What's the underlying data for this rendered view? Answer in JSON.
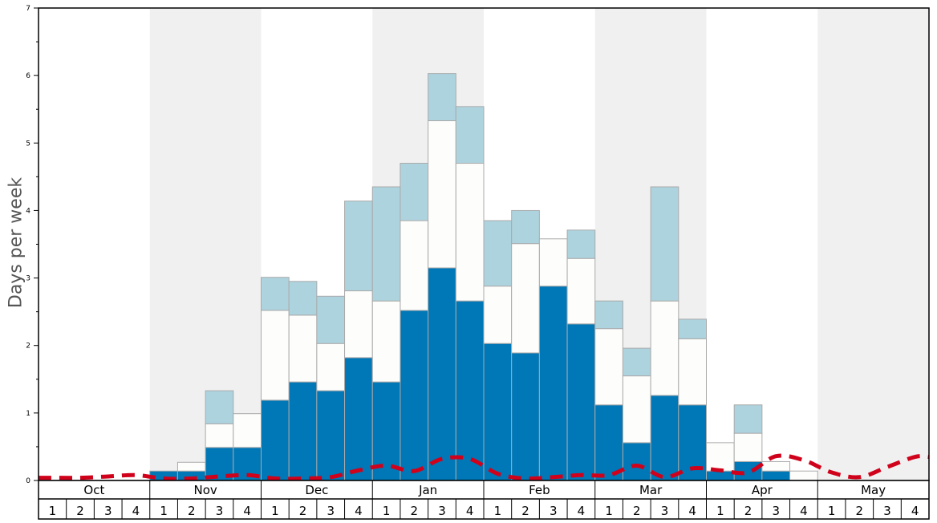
{
  "chart_data": {
    "type": "bar",
    "stacked": true,
    "ylabel": "Days per week",
    "ylim": [
      0,
      7
    ],
    "yticks": [
      "0",
      "1",
      "2",
      "3",
      "4",
      "5",
      "6",
      "7"
    ],
    "months": [
      "Oct",
      "Nov",
      "Dec",
      "Jan",
      "Feb",
      "Mar",
      "Apr",
      "May"
    ],
    "week_labels": [
      "1",
      "2",
      "3",
      "4"
    ],
    "colors": {
      "dark": "#0077b6",
      "white": "#fdfdfb",
      "light": "#add3df",
      "line": "#d0021b",
      "band": "#f0f0f0"
    },
    "series": [
      {
        "name": "dark",
        "values": [
          0,
          0,
          0,
          0,
          0.14,
          0.14,
          0.49,
          0.49,
          1.19,
          1.46,
          1.33,
          1.82,
          1.46,
          2.52,
          3.15,
          2.66,
          2.03,
          1.89,
          2.88,
          2.32,
          1.12,
          0.56,
          1.26,
          1.12,
          0.14,
          0.28,
          0.14,
          0,
          0,
          0,
          0,
          0
        ]
      },
      {
        "name": "white",
        "values": [
          0,
          0,
          0,
          0,
          0,
          0.13,
          0.35,
          0.5,
          1.33,
          0.99,
          0.7,
          0.99,
          1.2,
          1.33,
          2.18,
          2.04,
          0.85,
          1.62,
          0.7,
          0.97,
          1.13,
          0.99,
          1.4,
          0.98,
          0.42,
          0.42,
          0.14,
          0.14,
          0,
          0,
          0,
          0
        ]
      },
      {
        "name": "light",
        "values": [
          0,
          0,
          0,
          0,
          0,
          0,
          0.49,
          0,
          0.49,
          0.5,
          0.7,
          1.33,
          1.69,
          0.85,
          0.7,
          0.84,
          0.97,
          0.49,
          0,
          0.42,
          0.41,
          0.41,
          1.69,
          0.29,
          0,
          0.42,
          0,
          0,
          0,
          0,
          0,
          0
        ]
      }
    ],
    "line": {
      "name": "average",
      "style": "dashed",
      "values": [
        0.04,
        0.04,
        0.06,
        0.08,
        0.03,
        0.03,
        0.06,
        0.08,
        0.03,
        0.03,
        0.05,
        0.15,
        0.22,
        0.14,
        0.32,
        0.32,
        0.1,
        0.03,
        0.05,
        0.08,
        0.08,
        0.22,
        0.05,
        0.18,
        0.15,
        0.12,
        0.36,
        0.3,
        0.12,
        0.05,
        0.2,
        0.35
      ]
    }
  }
}
